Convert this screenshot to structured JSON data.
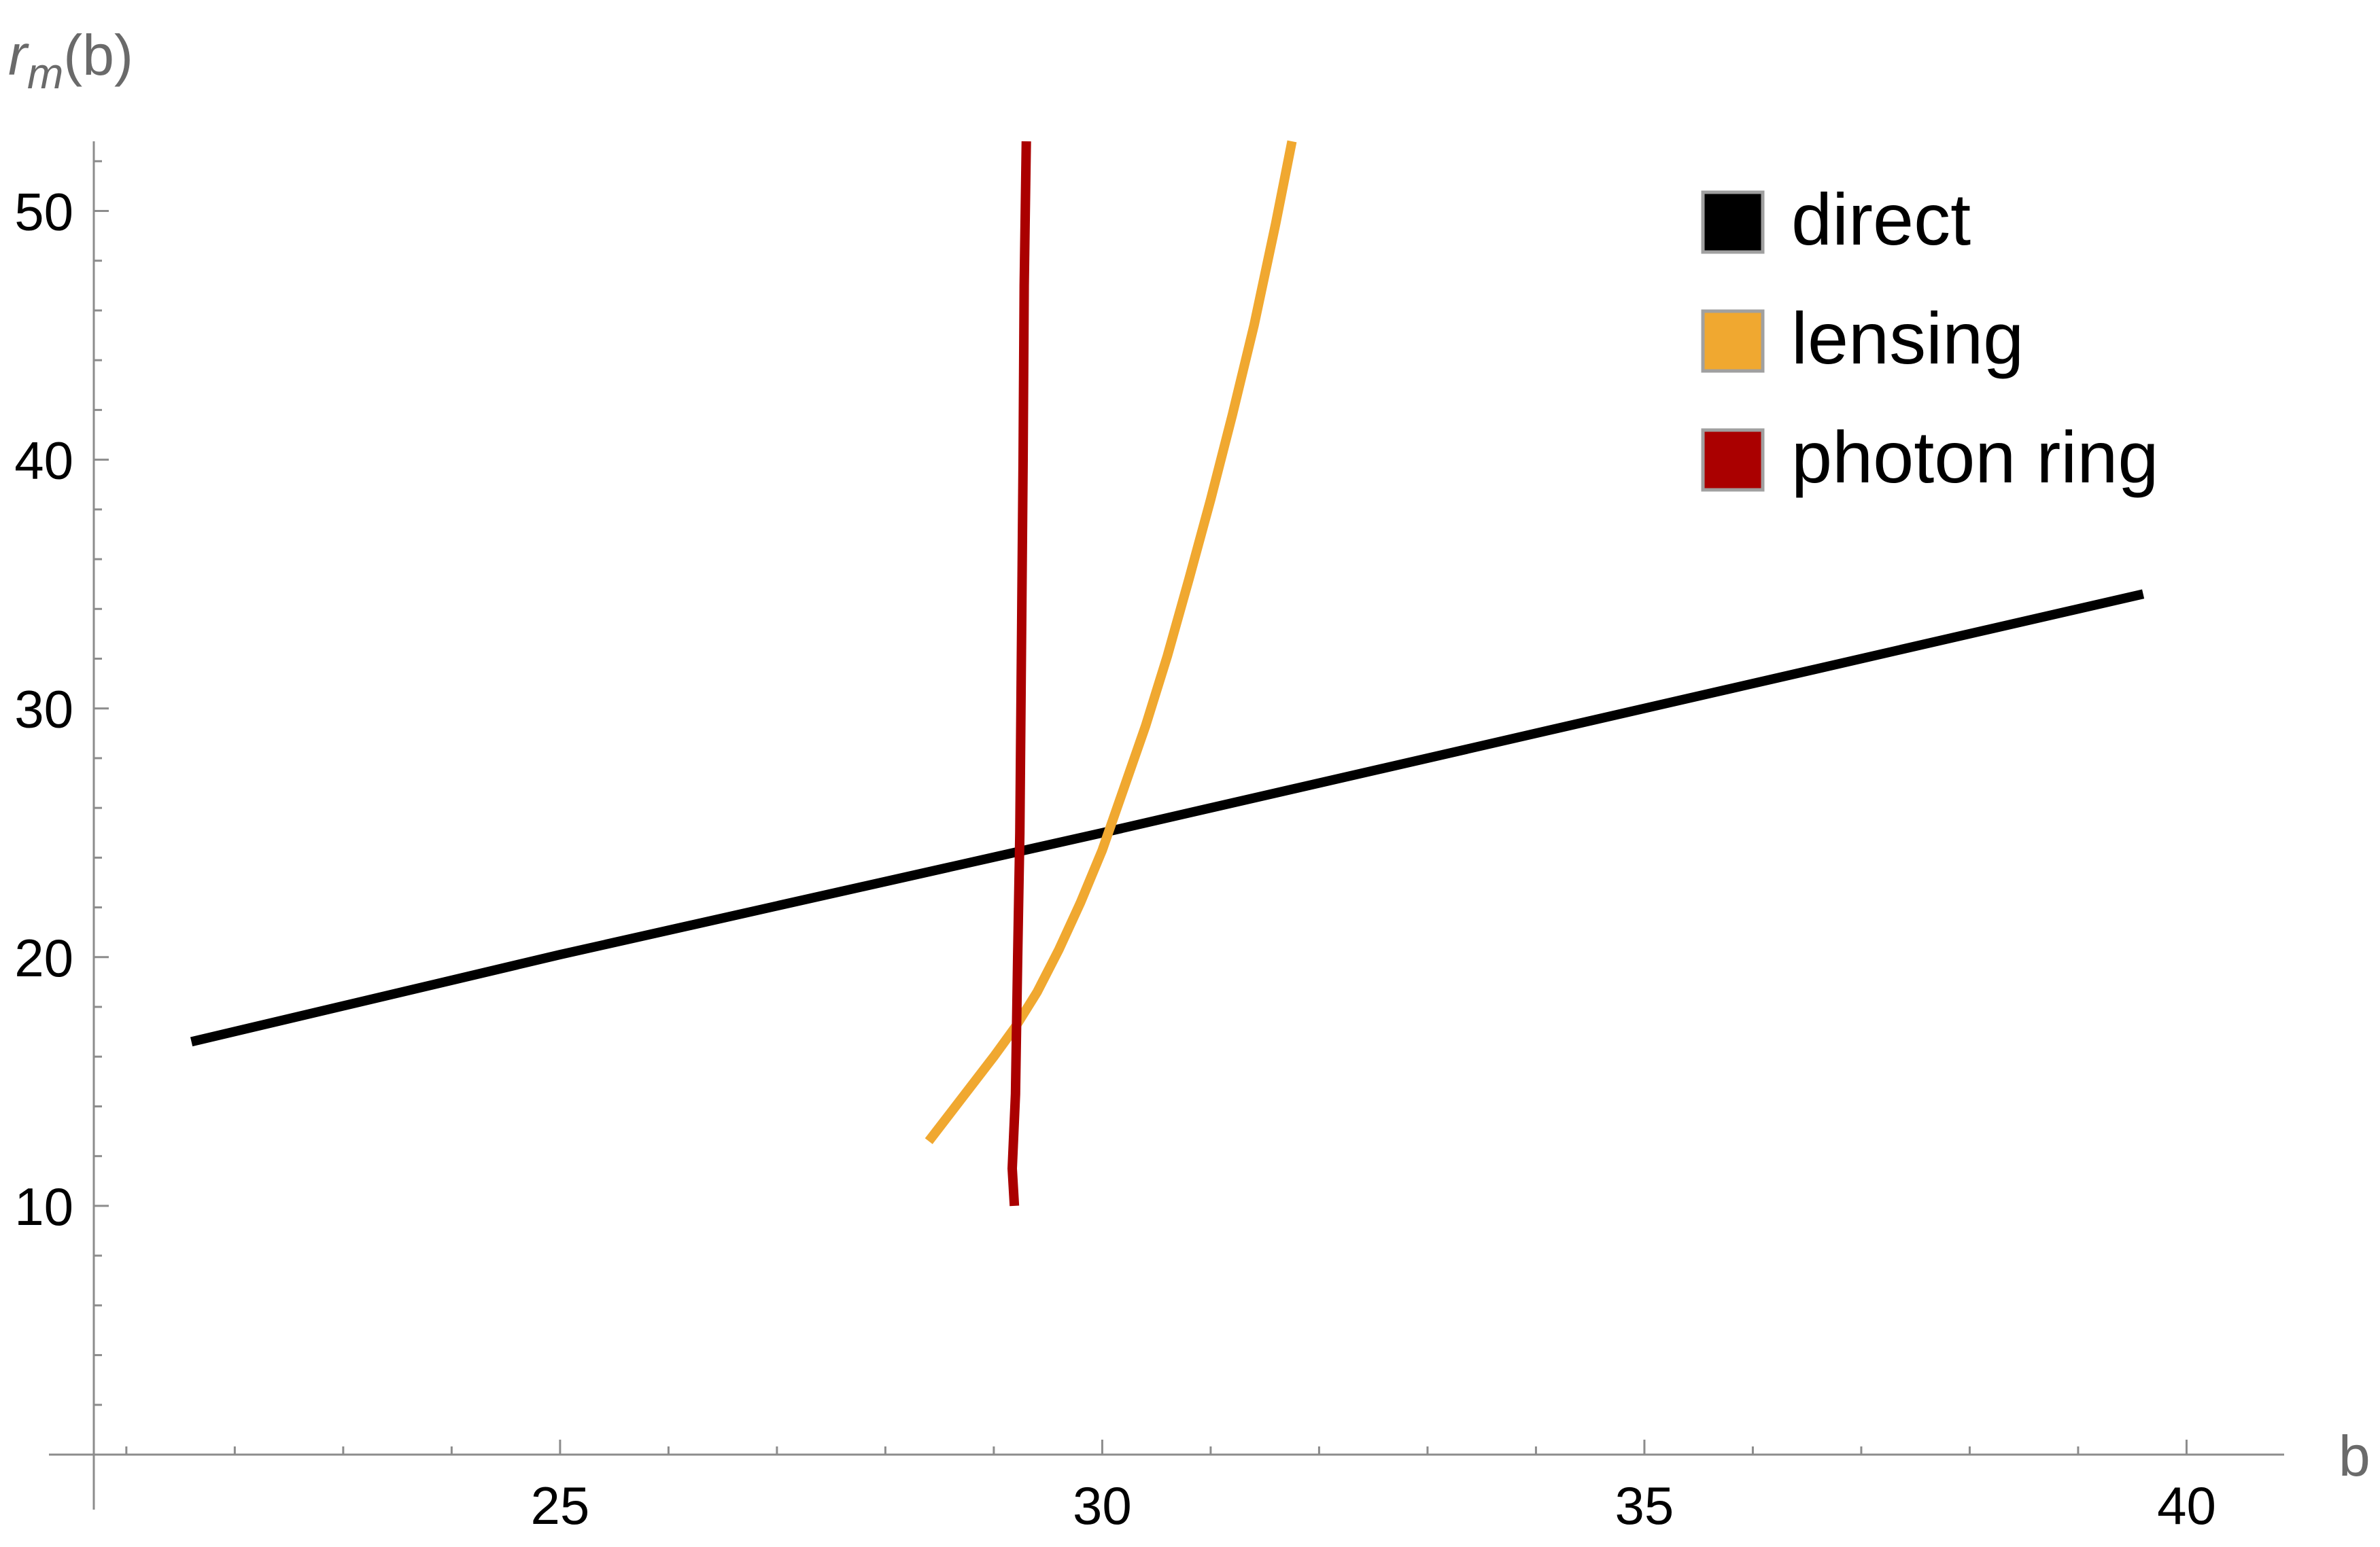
{
  "chart_data": {
    "type": "line",
    "xlabel": "b",
    "ylabel": {
      "base": "r",
      "subscript": "m",
      "suffix": "(b)"
    },
    "xlim": [
      20.7,
      40.9
    ],
    "ylim": [
      0,
      52.8
    ],
    "x_ticks": [
      25,
      30,
      35,
      40
    ],
    "y_ticks": [
      10,
      20,
      30,
      40,
      50
    ],
    "grid": false,
    "legend_position": "top-right",
    "series": [
      {
        "name": "direct",
        "color": "#000000",
        "x": [
          21.6,
          25,
          30,
          35,
          39.6
        ],
        "y": [
          16.6,
          20.1,
          25.0,
          30.0,
          34.6
        ]
      },
      {
        "name": "lensing",
        "color": "#f0a830",
        "x": [
          28.4,
          28.7,
          29.0,
          29.2,
          29.4,
          29.6,
          29.8,
          30.0,
          30.2,
          30.4,
          30.6,
          30.8,
          31.0,
          31.2,
          31.4,
          31.6,
          31.75
        ],
        "y": [
          12.6,
          14.3,
          16.0,
          17.2,
          18.6,
          20.3,
          22.2,
          24.3,
          26.8,
          29.3,
          32.1,
          35.2,
          38.4,
          41.8,
          45.4,
          49.5,
          52.8
        ]
      },
      {
        "name": "photon ring",
        "color": "#aa0000",
        "x": [
          29.19,
          29.17,
          29.18,
          29.2,
          29.22,
          29.24,
          29.25,
          29.27,
          29.28,
          29.3
        ],
        "y": [
          10.0,
          11.5,
          12.5,
          14.5,
          20.0,
          25.0,
          30.0,
          40.0,
          47.0,
          52.8
        ]
      }
    ]
  }
}
